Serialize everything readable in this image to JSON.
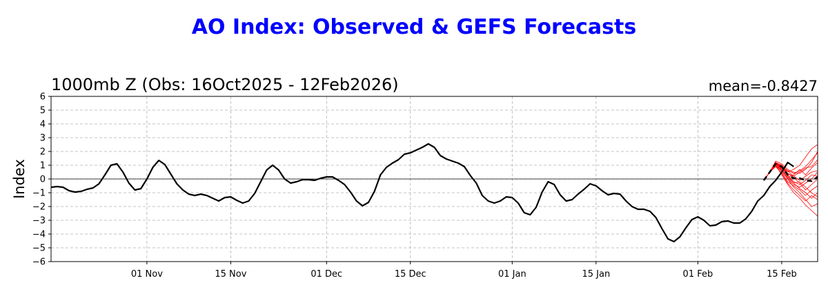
{
  "chart_data": {
    "type": "line",
    "title": "AO Index: Observed & GEFS Forecasts",
    "subtitle": "1000mb Z (Obs: 16Oct2025 - 12Feb2026)",
    "annotation": "mean=-0.8427",
    "ylabel": "Index",
    "ylim": [
      -6,
      6
    ],
    "yticks": [
      "6",
      "5",
      "4",
      "3",
      "2",
      "1",
      "0",
      "−1",
      "−2",
      "−3",
      "−4",
      "−5",
      "−6"
    ],
    "xticks": [
      "01 Nov",
      "15 Nov",
      "01 Dec",
      "15 Dec",
      "01 Jan",
      "15 Jan",
      "01 Feb",
      "15 Feb"
    ],
    "grid": true,
    "colors": {
      "title": "#0000ff",
      "observed": "#000000",
      "members": "#ff0000",
      "mean": "#000000"
    },
    "observed": {
      "start": "2025-10-16",
      "values": [
        -0.6,
        -0.55,
        -0.6,
        -0.85,
        -0.95,
        -0.9,
        -0.75,
        -0.65,
        -0.35,
        0.3,
        1.0,
        1.1,
        0.5,
        -0.3,
        -0.8,
        -0.7,
        0.0,
        0.85,
        1.35,
        1.05,
        0.35,
        -0.35,
        -0.8,
        -1.1,
        -1.2,
        -1.1,
        -1.2,
        -1.4,
        -1.6,
        -1.35,
        -1.3,
        -1.55,
        -1.75,
        -1.6,
        -1.05,
        -0.2,
        0.65,
        1.0,
        0.65,
        0.0,
        -0.3,
        -0.2,
        -0.05,
        -0.05,
        -0.1,
        0.05,
        0.15,
        0.15,
        -0.1,
        -0.4,
        -0.95,
        -1.6,
        -1.95,
        -1.7,
        -0.9,
        0.3,
        0.85,
        1.15,
        1.4,
        1.8,
        1.9,
        2.1,
        2.3,
        2.55,
        2.3,
        1.7,
        1.45,
        1.3,
        1.15,
        0.9,
        0.25,
        -0.3,
        -1.2,
        -1.6,
        -1.75,
        -1.6,
        -1.3,
        -1.35,
        -1.75,
        -2.45,
        -2.6,
        -2.05,
        -0.95,
        -0.2,
        -0.4,
        -1.15,
        -1.6,
        -1.5,
        -1.1,
        -0.75,
        -0.35,
        -0.5,
        -0.85,
        -1.15,
        -1.05,
        -1.1,
        -1.6,
        -2.0,
        -2.2,
        -2.2,
        -2.35,
        -2.8,
        -3.6,
        -4.35,
        -4.55,
        -4.2,
        -3.55,
        -2.95,
        -2.75,
        -3.0,
        -3.4,
        -3.35,
        -3.1,
        -3.05,
        -3.2,
        -3.2,
        -2.9,
        -2.35,
        -1.6,
        -1.2,
        -0.55,
        -0.1,
        0.5,
        1.2,
        0.9
      ]
    },
    "forecast": {
      "start": "2026-02-12",
      "mean": [
        -0.1,
        0.5,
        1.1,
        0.9,
        0.3,
        0.05,
        0.05,
        -0.1,
        -0.15,
        0.15,
        0.65,
        0.65,
        0.6,
        0.55
      ],
      "members": [
        [
          -0.1,
          0.5,
          1.2,
          1.0,
          0.6,
          0.5,
          0.4,
          0.7,
          1.2,
          2.0,
          3.3,
          3.2,
          3.8,
          4.7
        ],
        [
          -0.1,
          0.5,
          1.1,
          0.9,
          0.5,
          0.7,
          1.0,
          1.6,
          2.2,
          2.5,
          2.2,
          1.5,
          2.3,
          2.9
        ],
        [
          -0.1,
          0.5,
          1.3,
          1.1,
          0.7,
          0.4,
          0.6,
          0.9,
          1.4,
          1.9,
          2.1,
          2.0,
          1.6,
          2.2
        ],
        [
          -0.1,
          0.5,
          1.0,
          0.8,
          0.4,
          0.2,
          0.5,
          0.8,
          0.9,
          1.4,
          1.8,
          1.9,
          1.2,
          1.8
        ],
        [
          -0.1,
          0.5,
          1.2,
          0.7,
          0.1,
          0.3,
          0.7,
          0.3,
          0.8,
          1.2,
          1.1,
          0.9,
          1.5,
          1.2
        ],
        [
          -0.1,
          0.5,
          0.9,
          0.8,
          0.6,
          0.2,
          -0.1,
          0.2,
          0.5,
          0.6,
          1.0,
          0.5,
          0.9,
          0.7
        ],
        [
          -0.1,
          0.5,
          1.1,
          1.0,
          0.3,
          -0.2,
          -0.4,
          -0.1,
          0.3,
          0.2,
          0.3,
          0.8,
          0.4,
          0.6
        ],
        [
          -0.1,
          0.5,
          1.0,
          0.6,
          0.0,
          -0.4,
          -0.6,
          -0.3,
          0.0,
          0.5,
          0.9,
          0.3,
          -0.2,
          0.1
        ],
        [
          -0.1,
          0.5,
          1.2,
          0.9,
          0.4,
          0.1,
          -0.3,
          -0.8,
          -0.4,
          0.0,
          0.4,
          0.0,
          -0.5,
          -0.4
        ],
        [
          -0.1,
          0.5,
          1.0,
          0.5,
          -0.2,
          -0.5,
          -0.8,
          -1.2,
          -0.8,
          -0.5,
          -0.2,
          -0.6,
          -0.9,
          -0.5
        ],
        [
          -0.1,
          0.5,
          1.1,
          0.8,
          0.2,
          -0.3,
          -0.7,
          -1.0,
          -1.4,
          -1.0,
          -0.6,
          -1.1,
          -0.8,
          -1.3
        ],
        [
          -0.1,
          0.5,
          0.9,
          0.4,
          -0.3,
          -0.8,
          -1.2,
          -1.6,
          -1.2,
          -1.5,
          -1.2,
          -1.6,
          -1.7,
          -2.0
        ],
        [
          -0.1,
          0.5,
          1.2,
          0.6,
          0.0,
          -0.6,
          -1.0,
          -1.5,
          -2.0,
          -1.8,
          -2.4,
          -2.0,
          -2.6,
          -2.4
        ],
        [
          -0.1,
          0.5,
          1.0,
          0.3,
          -0.4,
          -1.0,
          -1.4,
          -1.9,
          -2.3,
          -2.7,
          -2.5,
          -2.9,
          -2.5,
          -3.0
        ],
        [
          -0.1,
          0.5,
          1.1,
          0.7,
          0.1,
          -0.3,
          -0.2,
          -0.6,
          -1.0,
          -1.3,
          -0.9,
          -1.4,
          -1.2,
          -0.9
        ]
      ]
    }
  }
}
